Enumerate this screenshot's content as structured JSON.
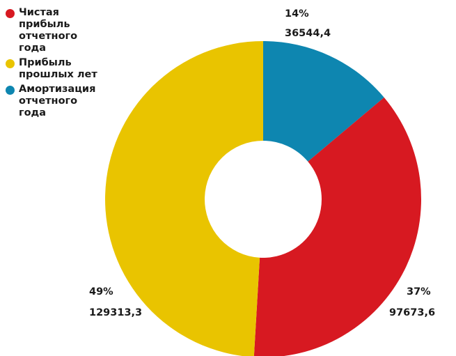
{
  "chart_data": {
    "type": "pie",
    "variant": "donut",
    "categories": [
      "Чистая прибыль отчетного года",
      "Прибыль прошлых лет",
      "Амортизация отчетного года"
    ],
    "values": [
      97673.6,
      129313.3,
      36544.4
    ],
    "value_labels": [
      "97673,6",
      "129313,3",
      "36544,4"
    ],
    "percent_labels": [
      "37%",
      "49%",
      "14%"
    ],
    "colors": [
      "#D71921",
      "#E9C400",
      "#0E86B0"
    ],
    "start_series_index_clockwise": 2,
    "legend": {
      "placement": "top-left",
      "entries": [
        {
          "label": "Чистая прибыль отчетного года",
          "color": "#D71921"
        },
        {
          "label": "Прибыль прошлых лет",
          "color": "#E9C400"
        },
        {
          "label": "Амортизация отчетного года",
          "color": "#0E86B0"
        }
      ]
    }
  }
}
